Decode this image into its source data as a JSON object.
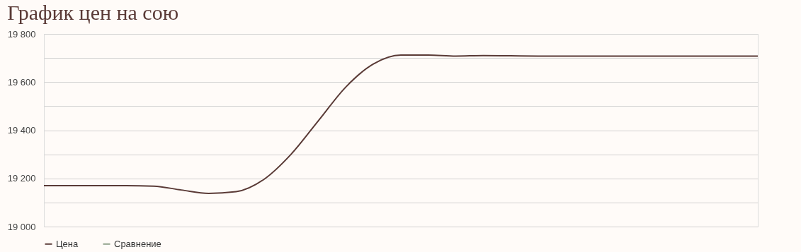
{
  "chart_data": {
    "type": "line",
    "title": "График цен на сою",
    "categories": [
      null,
      null,
      null,
      null,
      null,
      null,
      null,
      null,
      null,
      null,
      null,
      null,
      null,
      null,
      null,
      null,
      null,
      null,
      null,
      null,
      null,
      null,
      null,
      null,
      null,
      null,
      null
    ],
    "series": [
      {
        "name": "Цена",
        "color": "#5a3a36",
        "values": [
          19170,
          19170,
          19170,
          19170,
          19168,
          19152,
          19138,
          19145,
          19195,
          19300,
          19440,
          19580,
          19675,
          19712,
          19712,
          19708,
          19710,
          19709,
          19708,
          19708,
          19708,
          19708,
          19708,
          19708,
          19708,
          19708,
          19708
        ]
      },
      {
        "name": "Сравнение",
        "color": "#8fa08a",
        "values": [
          null,
          null,
          null,
          null,
          null,
          null,
          null,
          null,
          null,
          null,
          null,
          null,
          null,
          null,
          null,
          null,
          null,
          null,
          null,
          null,
          null,
          null,
          null,
          null,
          null,
          null,
          null
        ]
      }
    ],
    "ylim": [
      19000,
      19800
    ],
    "yticks": [
      {
        "value": 19000,
        "label": "19 000"
      },
      {
        "value": 19100,
        "label": null
      },
      {
        "value": 19200,
        "label": "19 200"
      },
      {
        "value": 19300,
        "label": null
      },
      {
        "value": 19400,
        "label": "19 400"
      },
      {
        "value": 19500,
        "label": null
      },
      {
        "value": 19600,
        "label": "19 600"
      },
      {
        "value": 19700,
        "label": null
      },
      {
        "value": 19800,
        "label": "19 800"
      }
    ],
    "grid": "y",
    "legend": "bottom",
    "tick_labels": "y",
    "marker": "none",
    "line_style": "solid"
  }
}
